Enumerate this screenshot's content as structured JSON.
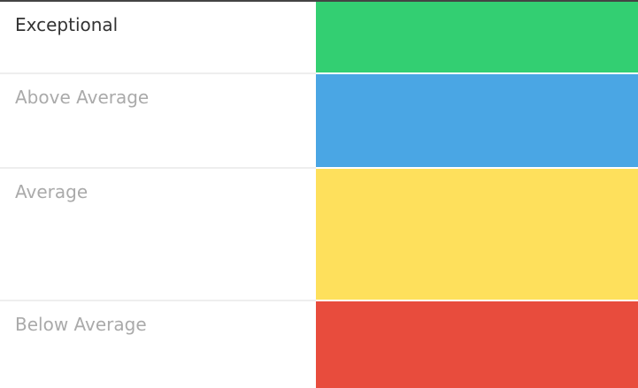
{
  "rows": [
    {
      "label": "Exceptional",
      "color": "#33cf72",
      "active": true
    },
    {
      "label": "Above Average",
      "color": "#4aa6e4",
      "active": false
    },
    {
      "label": "Average",
      "color": "#fee05c",
      "active": false
    },
    {
      "label": "Below Average",
      "color": "#e84c3d",
      "active": false
    }
  ]
}
